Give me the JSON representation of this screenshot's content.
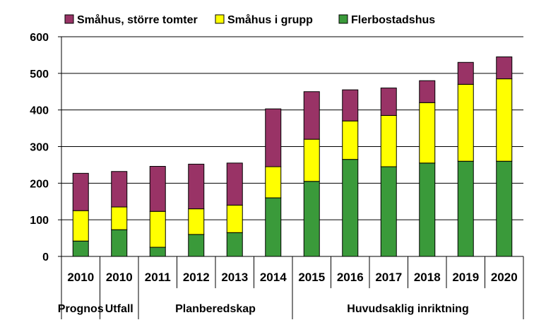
{
  "chart_data": {
    "type": "bar",
    "stacked": true,
    "categories": [
      "2010",
      "2010",
      "2011",
      "2012",
      "2013",
      "2014",
      "2015",
      "2016",
      "2017",
      "2018",
      "2019",
      "2020"
    ],
    "category_groups": [
      {
        "label": "Prognos",
        "start": 0,
        "end": 0
      },
      {
        "label": "Utfall",
        "start": 1,
        "end": 1
      },
      {
        "label": "Planberedskap",
        "start": 2,
        "end": 5
      },
      {
        "label": "Huvudsaklig inriktning",
        "start": 6,
        "end": 11
      }
    ],
    "series": [
      {
        "name": "Flerbostadshus",
        "color": "#3a9a3a",
        "values": [
          42,
          73,
          25,
          60,
          65,
          160,
          205,
          265,
          245,
          255,
          260,
          260
        ]
      },
      {
        "name": "Småhus i grupp",
        "color": "#ffff00",
        "values": [
          83,
          62,
          98,
          70,
          75,
          85,
          115,
          105,
          140,
          165,
          210,
          225
        ]
      },
      {
        "name": "Småhus, större tomter",
        "color": "#993366",
        "values": [
          102,
          97,
          123,
          122,
          115,
          158,
          130,
          85,
          75,
          60,
          60,
          60
        ]
      }
    ],
    "legend_order": [
      "Småhus, större tomter",
      "Småhus i grupp",
      "Flerbostadshus"
    ],
    "legend_position": "top",
    "ylim": [
      0,
      600
    ],
    "yticks": [
      0,
      100,
      200,
      300,
      400,
      500,
      600
    ],
    "grid": true,
    "title": "",
    "xlabel": "",
    "ylabel": ""
  }
}
